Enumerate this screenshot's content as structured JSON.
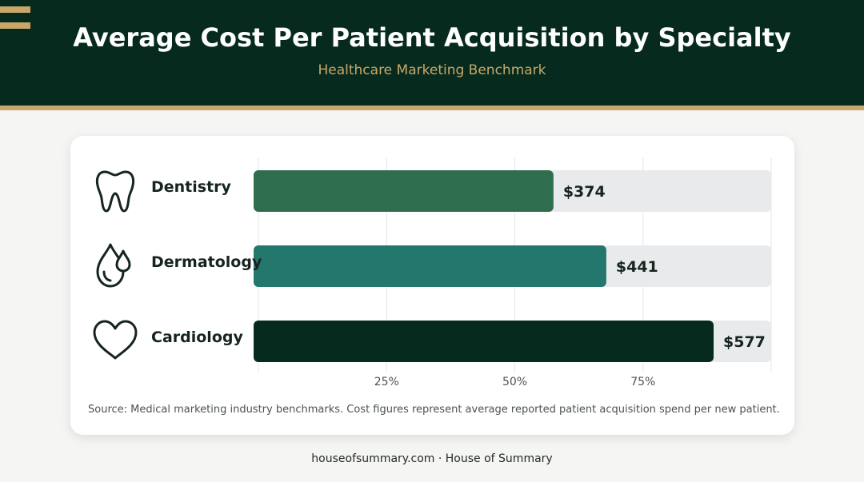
{
  "page": {
    "title": "Average Cost Per Patient Acquisition by Specialty",
    "subtitle": "Healthcare Marketing Benchmark",
    "source_note": "Source: Medical marketing industry benchmarks. Cost figures represent average reported patient acquisition spend per new patient.",
    "footer": "houseofsummary.com · House of Summary"
  },
  "colors": {
    "header_bg": "#062a1e",
    "accent_gold": "#c8a86a",
    "track": "#e8eaeb",
    "bar_dentistry": "#2e6e4e",
    "bar_dermatology": "#24776c",
    "bar_cardiology": "#062a1e"
  },
  "chart_data": {
    "type": "bar",
    "orientation": "horizontal",
    "categories": [
      "Dentistry",
      "Dermatology",
      "Cardiology"
    ],
    "icons": [
      "tooth-icon",
      "droplet-icon",
      "heart-icon"
    ],
    "values": [
      374,
      441,
      577
    ],
    "value_labels": [
      "$374",
      "$441",
      "$577"
    ],
    "xticks": [
      {
        "value": 25,
        "label": "25%"
      },
      {
        "value": 50,
        "label": "50%"
      },
      {
        "value": 75,
        "label": "75%"
      }
    ],
    "xlim": [
      0,
      100
    ],
    "value_max": 650,
    "grid": true,
    "legend": "none"
  }
}
